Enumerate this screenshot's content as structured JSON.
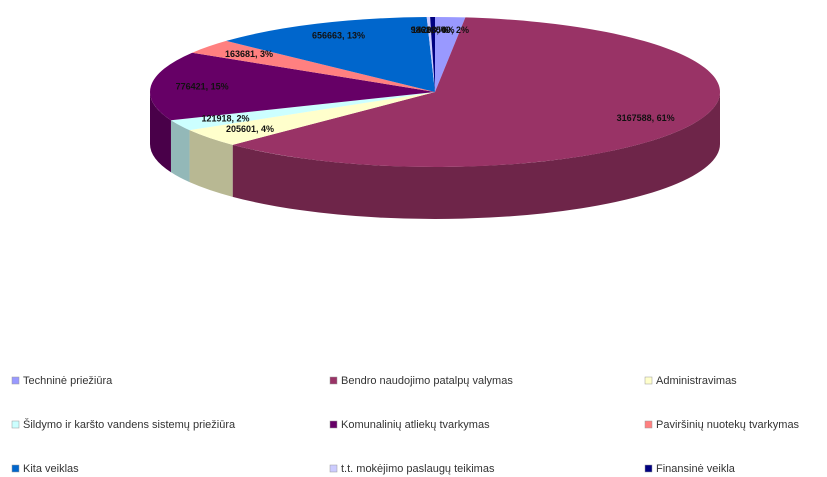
{
  "chart_data": {
    "type": "pie",
    "categories": [
      "Techninė priežiūra",
      "Bendro naudojimo patalpų valymas",
      "Administravimas",
      "Šildymo ir karšto vandens sistemų priežiūra",
      "Komunalinių atliekų tvarkymas",
      "Paviršinių nuotekų tvarkymas",
      "Kita veiklas",
      "t.t. mokėjimo paslaugų teikimas",
      "Finansinė veikla"
    ],
    "values": [
      88540,
      3167588,
      205601,
      121918,
      776421,
      163681,
      656663,
      9861,
      14208
    ],
    "value_labels": [
      "88540, 2%",
      "3167588, 61%",
      "205601, 4%",
      "121918, 2%",
      "776421, 15%",
      "163681, 3%",
      "656663, 13%",
      "9861, 0%",
      "14208, 0%"
    ],
    "colors": [
      "#9999ff",
      "#993366",
      "#ffffcc",
      "#ccffff",
      "#660066",
      "#ff8080",
      "#0066cc",
      "#ccccff",
      "#000080"
    ]
  }
}
